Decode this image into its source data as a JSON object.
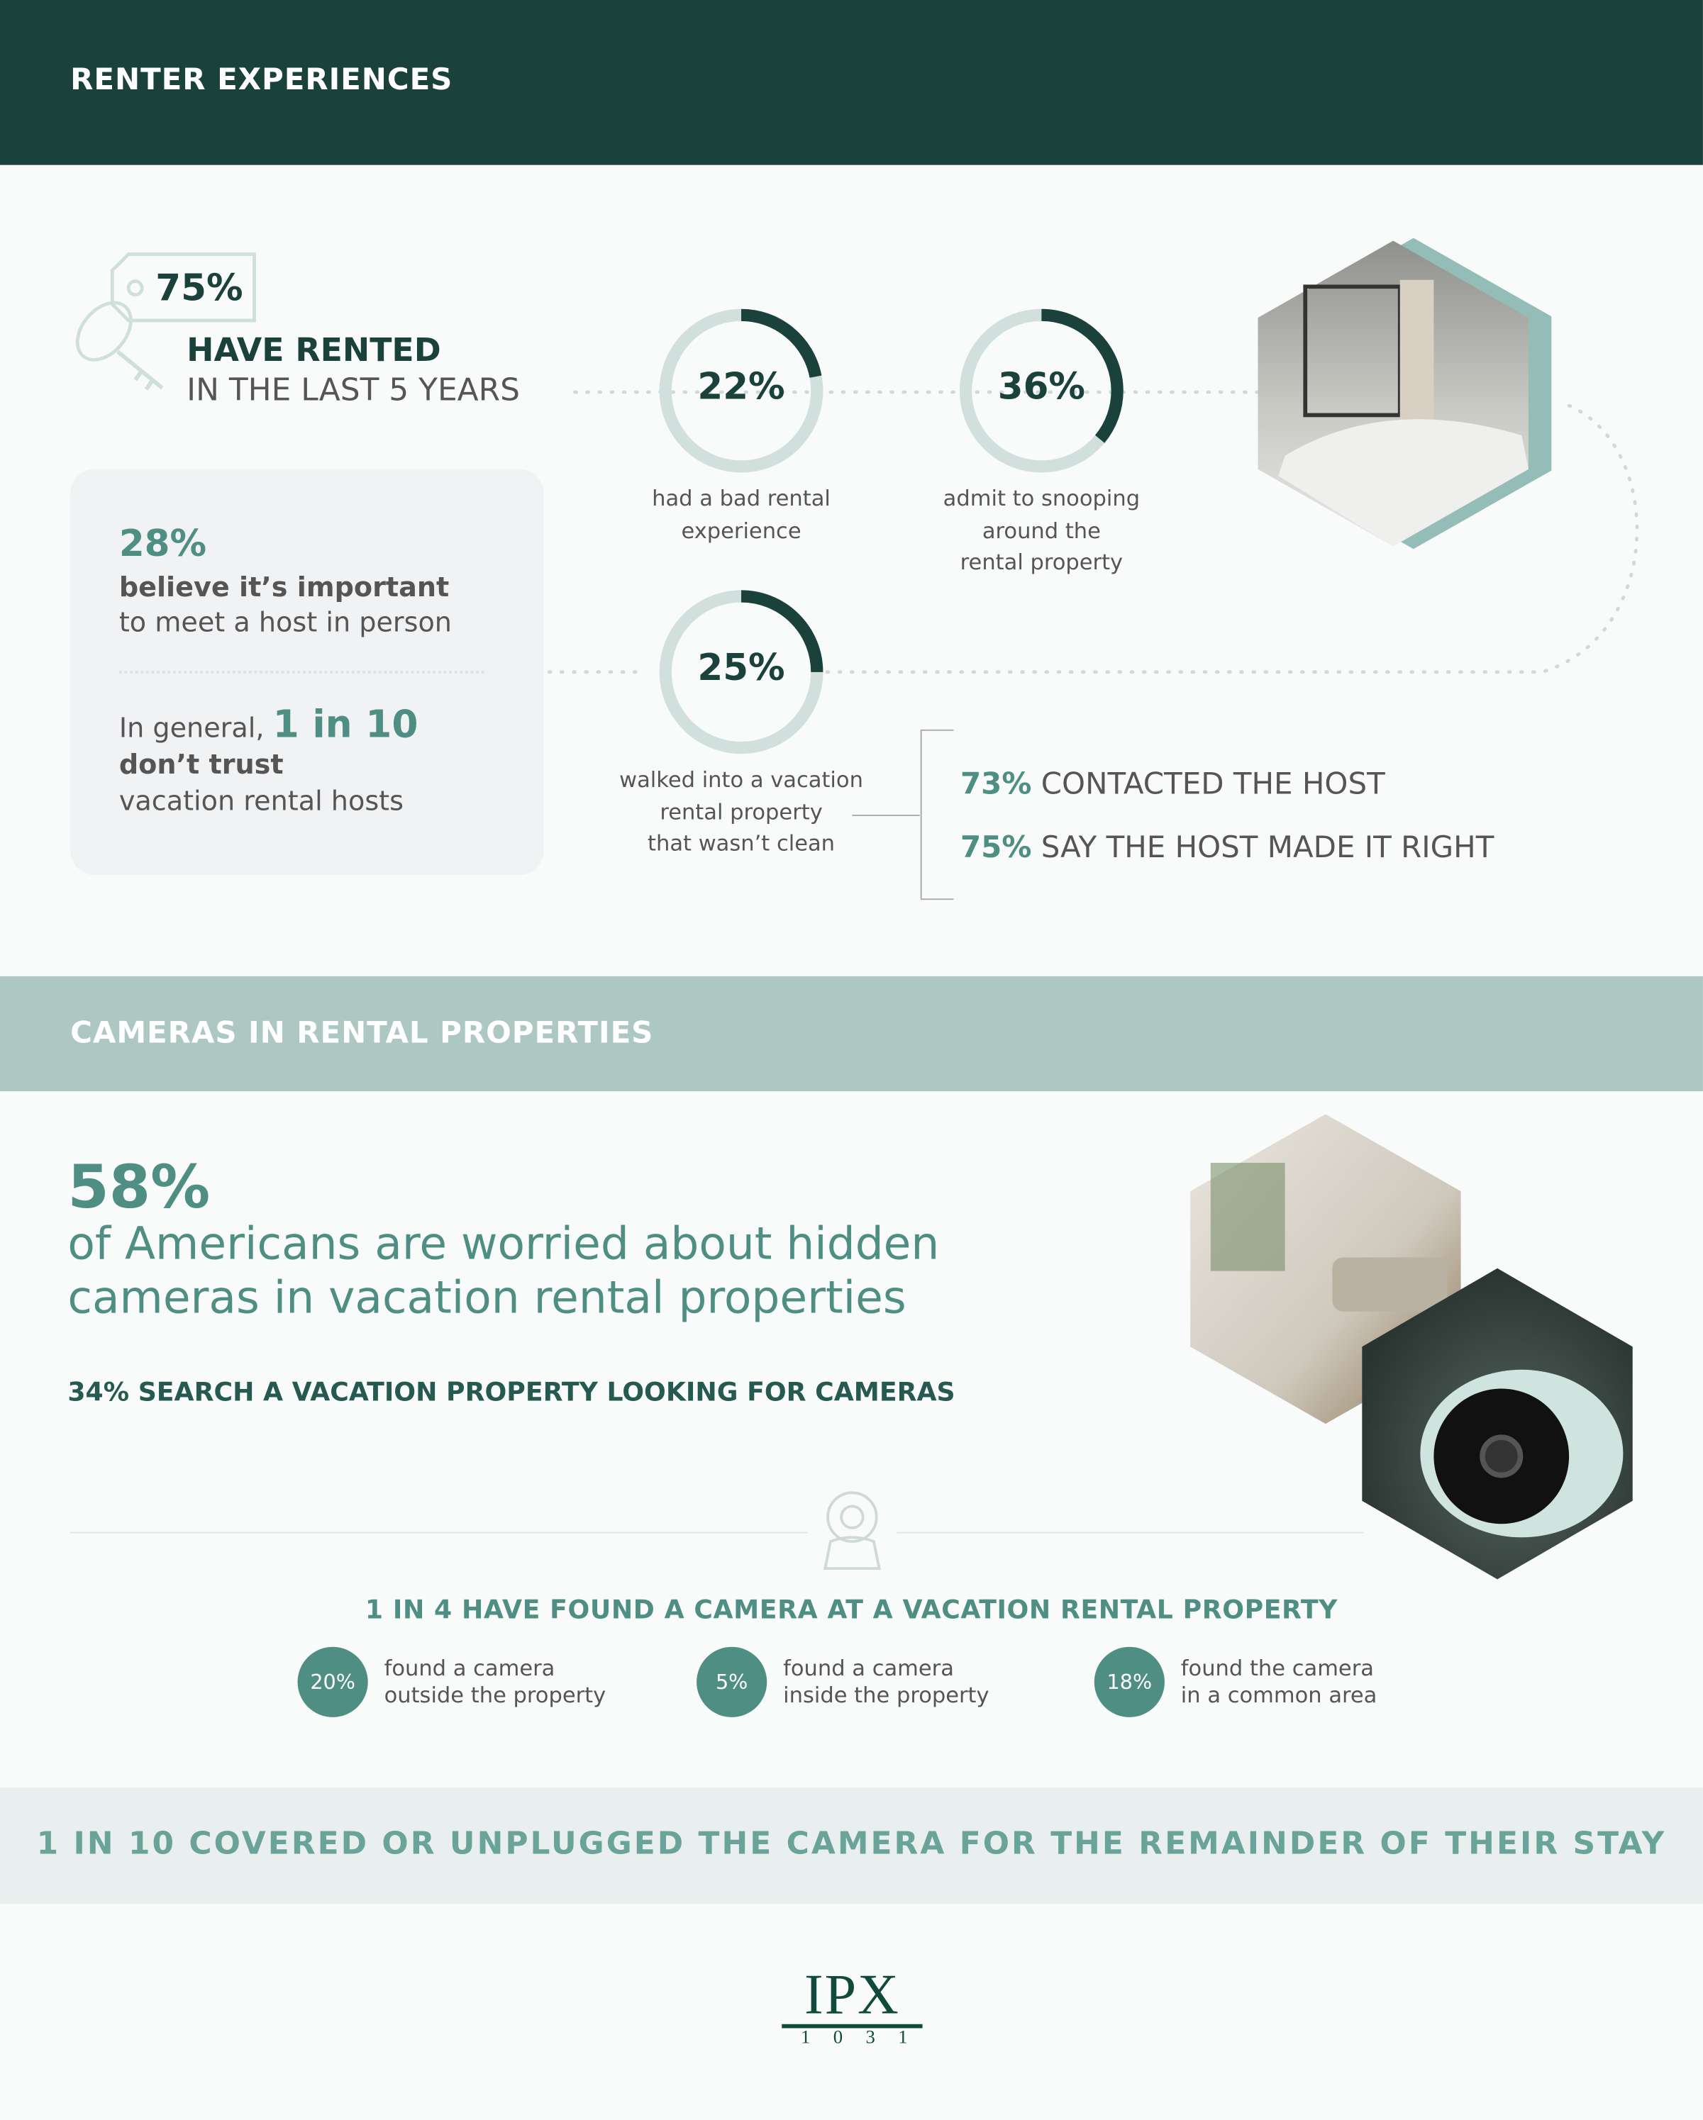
{
  "section1": {
    "title": "RENTER EXPERIENCES"
  },
  "rented": {
    "percent": "75%",
    "headline": "HAVE RENTED",
    "sub": "IN THE LAST 5 YEARS"
  },
  "card": {
    "stat1_percent": "28%",
    "stat1_bold": "believe it’s important",
    "stat1_text": "to meet a host in person",
    "stat2_prefix": "In general,",
    "stat2_highlight": "1 in 10",
    "stat2_bold": "don’t trust",
    "stat2_text": "vacation rental hosts"
  },
  "rings": [
    {
      "value": 22,
      "label": "22%",
      "caption": [
        "had a bad rental",
        "experience"
      ]
    },
    {
      "value": 36,
      "label": "36%",
      "caption": [
        "admit to snooping",
        "around the",
        "rental property"
      ]
    },
    {
      "value": 25,
      "label": "25%",
      "caption": [
        "walked into a vacation",
        "rental property",
        "that wasn’t clean"
      ]
    }
  ],
  "followups": [
    {
      "percent": "73%",
      "text": "CONTACTED THE HOST"
    },
    {
      "percent": "75%",
      "text": "SAY THE HOST MADE IT RIGHT"
    }
  ],
  "section2": {
    "title": "CAMERAS IN RENTAL PROPERTIES"
  },
  "worried": {
    "percent": "58%",
    "line1": "of Americans are worried about hidden",
    "line2": "cameras in vacation rental properties"
  },
  "search": "34% SEARCH A VACATION PROPERTY LOOKING FOR CAMERAS",
  "found_title": "1 IN 4 HAVE FOUND A CAMERA AT A VACATION RENTAL PROPERTY",
  "found": [
    {
      "percent": "20%",
      "line1": "found a camera",
      "line2": "outside the property"
    },
    {
      "percent": "5%",
      "line1": "found a camera",
      "line2": "inside the property"
    },
    {
      "percent": "18%",
      "line1": "found the camera",
      "line2": "in a common area"
    }
  ],
  "covered": "1 IN 10 COVERED OR UNPLUGGED THE CAMERA FOR THE REMAINDER OF THEIR STAY",
  "logo": {
    "text": "IPX",
    "sub": "1031"
  },
  "colors": {
    "dark": "#1a423a",
    "teal": "#4f8f83",
    "light_teal": "#adc8c3",
    "ring_track": "#d2e0dd"
  }
}
